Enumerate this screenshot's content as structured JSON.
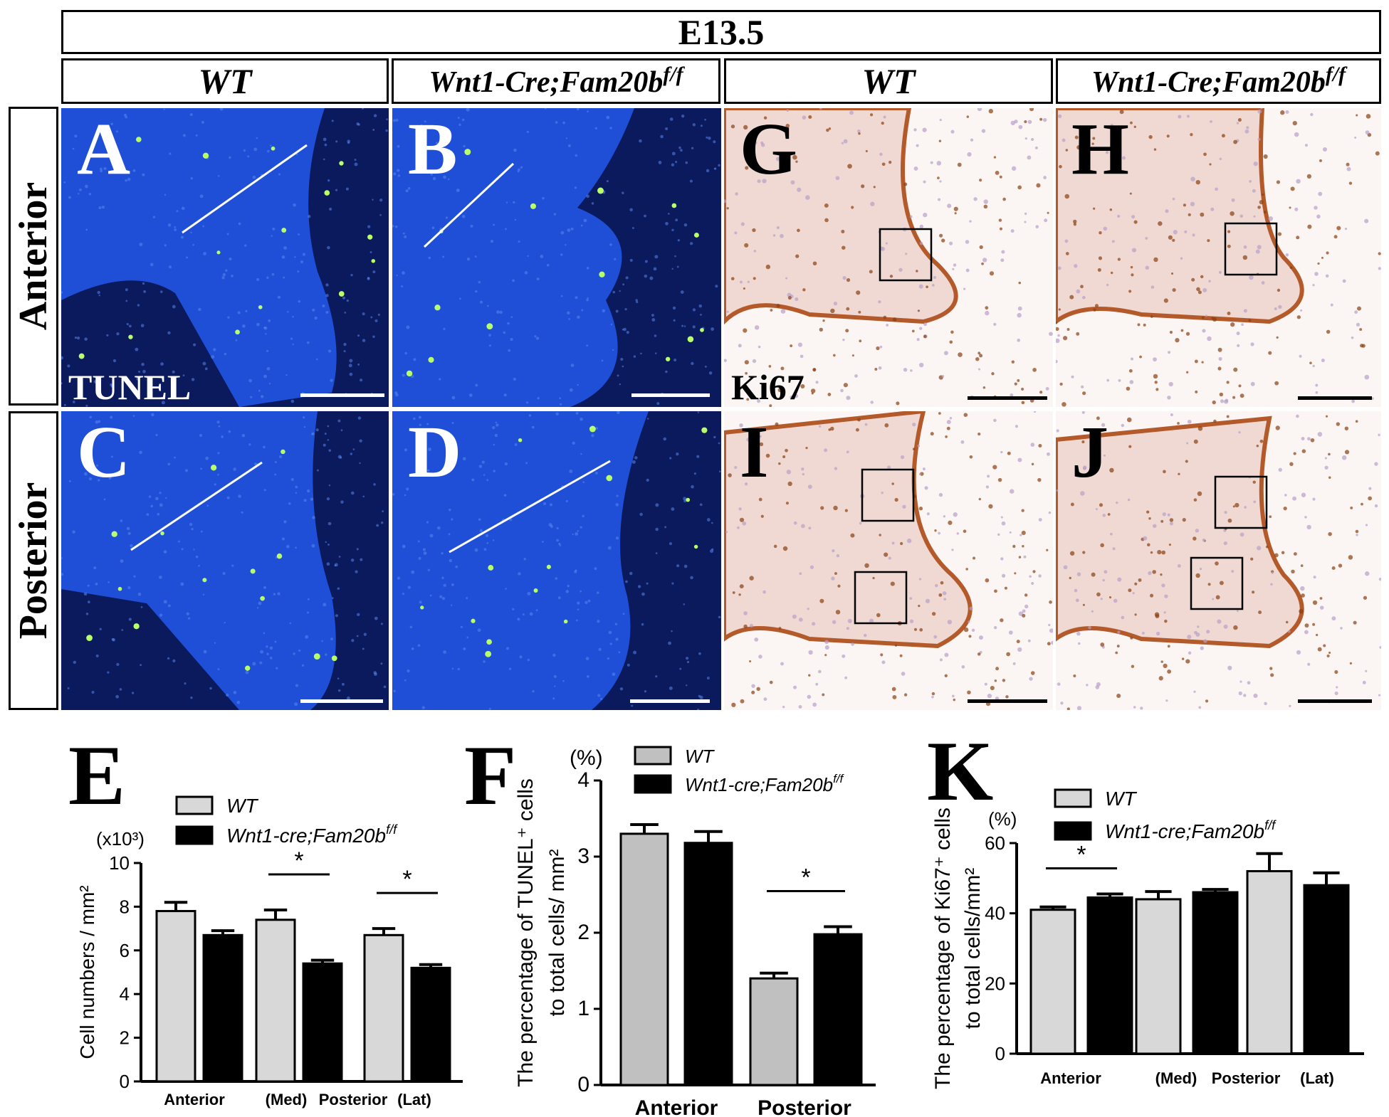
{
  "figure": {
    "stage": "E13.5",
    "genotypes": {
      "wt": "WT",
      "mut_prefix": "Wnt1-Cre;Fam20b",
      "mut_sup": "f/f"
    },
    "rows": [
      "Anterior",
      "Posterior"
    ],
    "stains": {
      "tunel": "TUNEL",
      "ki67": "Ki67"
    },
    "panels": [
      {
        "letter": "A",
        "stain": "tunel"
      },
      {
        "letter": "B",
        "stain": "tunel"
      },
      {
        "letter": "G",
        "stain": "ki67"
      },
      {
        "letter": "H",
        "stain": "ki67"
      },
      {
        "letter": "C",
        "stain": "tunel"
      },
      {
        "letter": "D",
        "stain": "tunel"
      },
      {
        "letter": "I",
        "stain": "ki67"
      },
      {
        "letter": "J",
        "stain": "ki67"
      }
    ],
    "colors": {
      "fluo_bg": "#0a1a5c",
      "fluo_tissue": "#1f4fd6",
      "fluo_dot": "#b8ff6a",
      "ihc_bg": "#fbf6f4",
      "ihc_tissue": "#efd9d2",
      "ihc_dot": "#8a3f10"
    }
  },
  "chart_data": [
    {
      "panel": "E",
      "type": "bar",
      "ylabel": "Cell numbers / mm²",
      "yunit": "(x10³)",
      "ylim": [
        0,
        10
      ],
      "yticks": [
        0,
        2,
        4,
        6,
        8,
        10
      ],
      "groups": [
        "Anterior",
        "(Med)",
        "Posterior",
        "(Lat)"
      ],
      "series": [
        {
          "name": "WT",
          "values": [
            7.8,
            7.4,
            6.7
          ],
          "errors": [
            0.4,
            0.45,
            0.3
          ],
          "color": "#d8d8d8"
        },
        {
          "name": "Wnt1-cre;Fam20b",
          "name_sup": "f/f",
          "values": [
            6.7,
            5.4,
            5.2
          ],
          "errors": [
            0.2,
            0.15,
            0.15
          ],
          "color": "#000000"
        }
      ],
      "significance": [
        "",
        "*",
        "*"
      ]
    },
    {
      "panel": "F",
      "type": "bar",
      "ylabel_line1": "The percentage of TUNEL⁺ cells",
      "ylabel_line2": "to total cells/ mm²",
      "yunit": "(%)",
      "ylim": [
        0,
        4
      ],
      "yticks": [
        0,
        1,
        2,
        3,
        4
      ],
      "categories": [
        "Anterior",
        "Posterior"
      ],
      "series": [
        {
          "name": "WT",
          "values": [
            3.3,
            1.4
          ],
          "errors": [
            0.12,
            0.07
          ],
          "color": "#c0c0c0"
        },
        {
          "name": "Wnt1-cre;Fam20b",
          "name_sup": "f/f",
          "values": [
            3.18,
            1.98
          ],
          "errors": [
            0.15,
            0.1
          ],
          "color": "#000000"
        }
      ],
      "significance": [
        "",
        "*"
      ]
    },
    {
      "panel": "K",
      "type": "bar",
      "ylabel_line1": "The percentage of Ki67⁺ cells",
      "ylabel_line2": "to total cells/mm²",
      "yunit": "(%)",
      "ylim": [
        0,
        60
      ],
      "yticks": [
        0,
        20,
        40,
        60
      ],
      "groups": [
        "Anterior",
        "(Med)",
        "Posterior",
        "(Lat)"
      ],
      "series": [
        {
          "name": "WT",
          "values": [
            41,
            44,
            52
          ],
          "errors": [
            0.8,
            2.2,
            5
          ],
          "color": "#d8d8d8"
        },
        {
          "name": "Wnt1-cre;Fam20b",
          "name_sup": "f/f",
          "values": [
            44.5,
            46,
            48
          ],
          "errors": [
            1,
            0.8,
            3.5
          ],
          "color": "#000000"
        }
      ],
      "significance": [
        "*",
        "",
        ""
      ]
    }
  ]
}
